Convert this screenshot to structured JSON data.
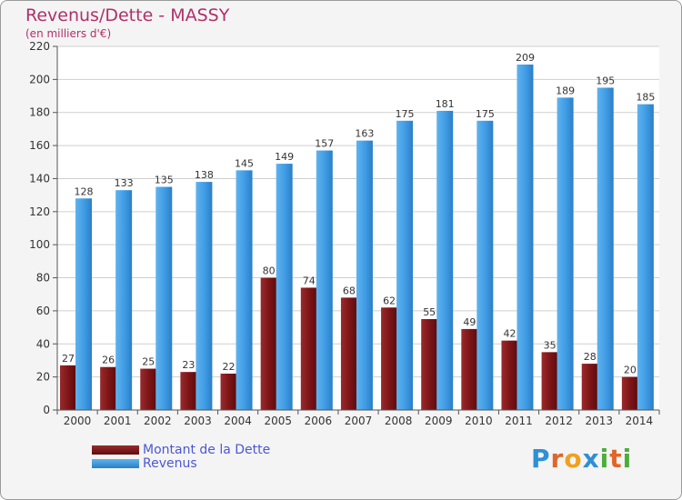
{
  "title": "Revenus/Dette - MASSY",
  "subtitle": "(en milliers d'€)",
  "logo_text": "Proxiti",
  "colors": {
    "dette": "#7a1416",
    "revenus": "#3f9be4",
    "title": "#b0306a",
    "legend_text": "#4a57d6",
    "background": "#f4f4f4"
  },
  "chart_data": {
    "type": "bar",
    "categories": [
      "2000",
      "2001",
      "2002",
      "2003",
      "2004",
      "2005",
      "2006",
      "2007",
      "2008",
      "2009",
      "2010",
      "2011",
      "2012",
      "2013",
      "2014"
    ],
    "series": [
      {
        "name": "Montant de la Dette",
        "values": [
          27,
          26,
          25,
          23,
          22,
          80,
          74,
          68,
          62,
          55,
          49,
          42,
          35,
          28,
          20
        ]
      },
      {
        "name": "Revenus",
        "values": [
          128,
          133,
          135,
          138,
          145,
          149,
          157,
          163,
          175,
          181,
          175,
          209,
          189,
          195,
          185
        ]
      }
    ],
    "title": "Revenus/Dette - MASSY",
    "subtitle": "(en milliers d'€)",
    "ylim": [
      0,
      220
    ],
    "yticks": [
      0,
      20,
      40,
      60,
      80,
      100,
      120,
      140,
      160,
      180,
      200,
      220
    ],
    "grid": true,
    "legend_position": "bottom-left"
  }
}
